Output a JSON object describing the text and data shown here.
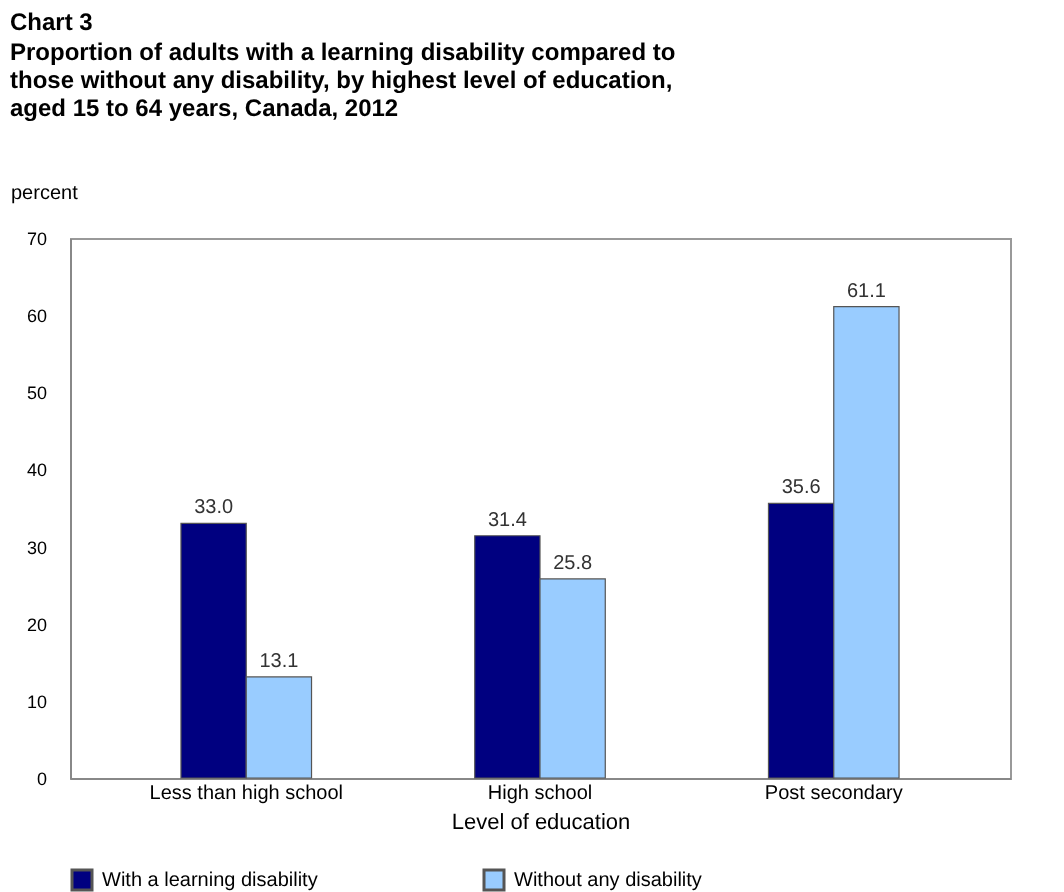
{
  "chart_data": {
    "type": "bar",
    "title": "Chart 3",
    "subtitle": "Proportion of adults with a learning disability compared to those without any disability, by highest level of education, aged 15 to 64 years, Canada, 2012",
    "xlabel": "Level of education",
    "ylabel": "percent",
    "categories": [
      "Less than high school",
      "High school",
      "Post secondary"
    ],
    "series": [
      {
        "name": "With a learning disability",
        "color": "#000080",
        "values": [
          33.0,
          31.4,
          35.6
        ],
        "value_labels": [
          "33.0",
          "31.4",
          "35.6"
        ]
      },
      {
        "name": "Without any disability",
        "color": "#99ccff",
        "values": [
          13.1,
          25.8,
          61.1
        ],
        "value_labels": [
          "13.1",
          "25.8",
          "61.1"
        ]
      }
    ],
    "ylim": [
      0,
      70
    ],
    "yticks": [
      0,
      10,
      20,
      30,
      40,
      50,
      60,
      70
    ],
    "grid": false,
    "legend": "bottom"
  }
}
